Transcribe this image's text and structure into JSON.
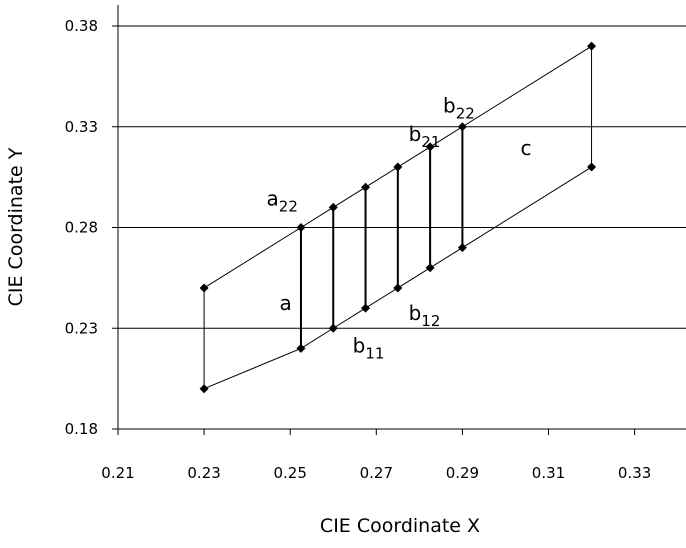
{
  "chart_data": {
    "type": "scatter",
    "title": "",
    "xlabel": "CIE Coordinate X",
    "ylabel": "CIE Coordinate Y",
    "xlim": [
      0.21,
      0.34
    ],
    "ylim": [
      0.18,
      0.39
    ],
    "x_ticks": [
      "0.21",
      "0.23",
      "0.25",
      "0.27",
      "0.29",
      "0.31",
      "0.33"
    ],
    "y_ticks": [
      "0.18",
      "0.23",
      "0.28",
      "0.33",
      "0.38"
    ],
    "grid": "horizontal",
    "marker_color": "#000000",
    "line_color": "#000000",
    "series": [
      {
        "role": "upper",
        "points": [
          [
            0.23,
            0.25
          ],
          [
            0.2525,
            0.28
          ],
          [
            0.26,
            0.29
          ],
          [
            0.2675,
            0.3
          ],
          [
            0.275,
            0.31
          ],
          [
            0.2825,
            0.32
          ],
          [
            0.29,
            0.33
          ],
          [
            0.32,
            0.37
          ]
        ]
      },
      {
        "role": "lower",
        "points": [
          [
            0.23,
            0.2
          ],
          [
            0.2525,
            0.22
          ],
          [
            0.26,
            0.23
          ],
          [
            0.2675,
            0.24
          ],
          [
            0.275,
            0.25
          ],
          [
            0.2825,
            0.26
          ],
          [
            0.29,
            0.27
          ],
          [
            0.32,
            0.31
          ]
        ]
      }
    ],
    "annotations": [
      {
        "base": "a",
        "sub": "",
        "x": 0.2475,
        "y": 0.239
      },
      {
        "base": "a",
        "sub": "22",
        "x": 0.2445,
        "y": 0.291
      },
      {
        "base": "b",
        "sub": "11",
        "x": 0.2645,
        "y": 0.218
      },
      {
        "base": "b",
        "sub": "12",
        "x": 0.2775,
        "y": 0.234
      },
      {
        "base": "b",
        "sub": "21",
        "x": 0.2775,
        "y": 0.323
      },
      {
        "base": "b",
        "sub": "22",
        "x": 0.2855,
        "y": 0.337
      },
      {
        "base": "c",
        "sub": "",
        "x": 0.3035,
        "y": 0.316
      }
    ]
  }
}
